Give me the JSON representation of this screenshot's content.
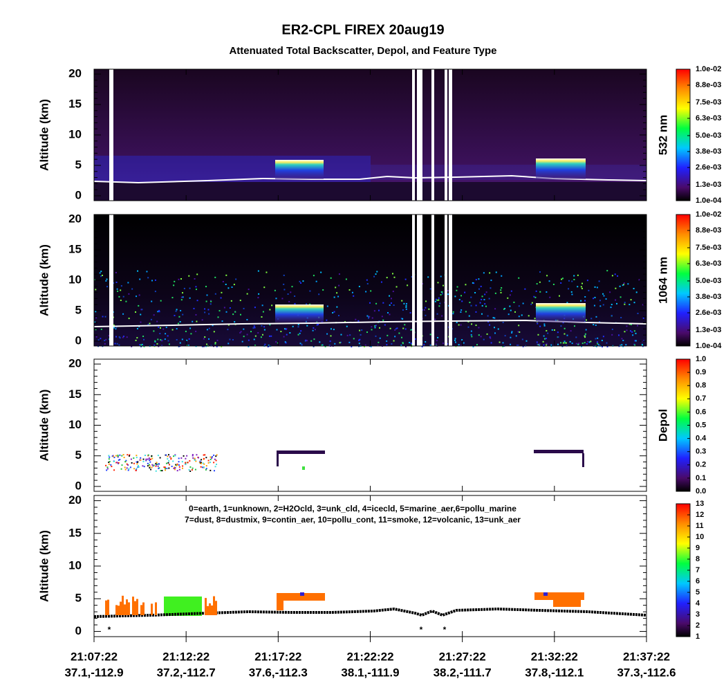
{
  "title": "ER2-CPL FIREX 20aug19",
  "subtitle": "Attenuated Total Backscatter, Depol, and Feature Type",
  "x_axis": {
    "times": [
      "21:07:22",
      "21:12:22",
      "21:17:22",
      "21:22:22",
      "21:27:22",
      "21:32:22",
      "21:37:22"
    ],
    "coordinates": [
      "37.1,-112.9",
      "37.2,-112.7",
      "37.6,-112.3",
      "38.1,-111.9",
      "38.2,-111.7",
      "37.8,-112.1",
      "37.3,-112.6"
    ]
  },
  "chart_data": [
    {
      "type": "curtain",
      "ylabel": "Altitude (km)",
      "ylim": [
        -0.8,
        20.8
      ],
      "yticks": [
        0,
        5,
        10,
        15,
        20
      ],
      "colorbar_label": "532 nm",
      "clim": [
        0.0001,
        0.01
      ],
      "cticks": [
        {
          "value": 0.01,
          "label": "1.0e-02"
        },
        {
          "value": 0.0088,
          "label": "8.8e-03"
        },
        {
          "value": 0.0075,
          "label": "7.5e-03"
        },
        {
          "value": 0.0063,
          "label": "6.3e-03"
        },
        {
          "value": 0.005,
          "label": "5.0e-03"
        },
        {
          "value": 0.0038,
          "label": "3.8e-03"
        },
        {
          "value": 0.0026,
          "label": "2.6e-03"
        },
        {
          "value": 0.0013,
          "label": "1.3e-03"
        },
        {
          "value": 0.0001,
          "label": "1.0e-04"
        }
      ]
    },
    {
      "type": "curtain",
      "ylabel": "Altitude (km)",
      "ylim": [
        -0.8,
        20.8
      ],
      "yticks": [
        0,
        5,
        10,
        15,
        20
      ],
      "colorbar_label": "1064 nm",
      "clim": [
        0.0001,
        0.01
      ],
      "cticks": [
        {
          "value": 0.01,
          "label": "1.0e-02"
        },
        {
          "value": 0.0088,
          "label": "8.8e-03"
        },
        {
          "value": 0.0075,
          "label": "7.5e-03"
        },
        {
          "value": 0.0063,
          "label": "6.3e-03"
        },
        {
          "value": 0.005,
          "label": "5.0e-03"
        },
        {
          "value": 0.0038,
          "label": "3.8e-03"
        },
        {
          "value": 0.0026,
          "label": "2.6e-03"
        },
        {
          "value": 0.0013,
          "label": "1.3e-03"
        },
        {
          "value": 0.0001,
          "label": "1.0e-04"
        }
      ]
    },
    {
      "type": "curtain",
      "ylabel": "Altitude (km)",
      "ylim": [
        -0.8,
        20.8
      ],
      "yticks": [
        0,
        5,
        10,
        15,
        20
      ],
      "colorbar_label": "Depol",
      "clim": [
        0,
        1
      ],
      "cticks": [
        {
          "value": 1,
          "label": "1.0"
        },
        0.9,
        0.8,
        0.7,
        0.6,
        0.5,
        0.4,
        0.3,
        0.2,
        0.1,
        {
          "value": 0,
          "label": "0.0"
        }
      ]
    },
    {
      "type": "curtain",
      "ylabel": "Altitude (km)",
      "ylim": [
        -0.8,
        20.8
      ],
      "yticks": [
        0,
        5,
        10,
        15,
        20
      ],
      "clim": [
        1,
        13
      ],
      "cticks": [
        13,
        12,
        11,
        10,
        9,
        8,
        7,
        6,
        5,
        4,
        3,
        2,
        1
      ],
      "annotations": [
        "0=earth, 1=unknown, 2=H2Ocld, 3=unk_cld, 4=icecld, 5=marine_aer,6=pollu_marine",
        "7=dust, 8=dustmix, 9=contin_aer, 10=pollu_cont, 11=smoke, 12=volcanic, 13=unk_aer"
      ]
    }
  ]
}
